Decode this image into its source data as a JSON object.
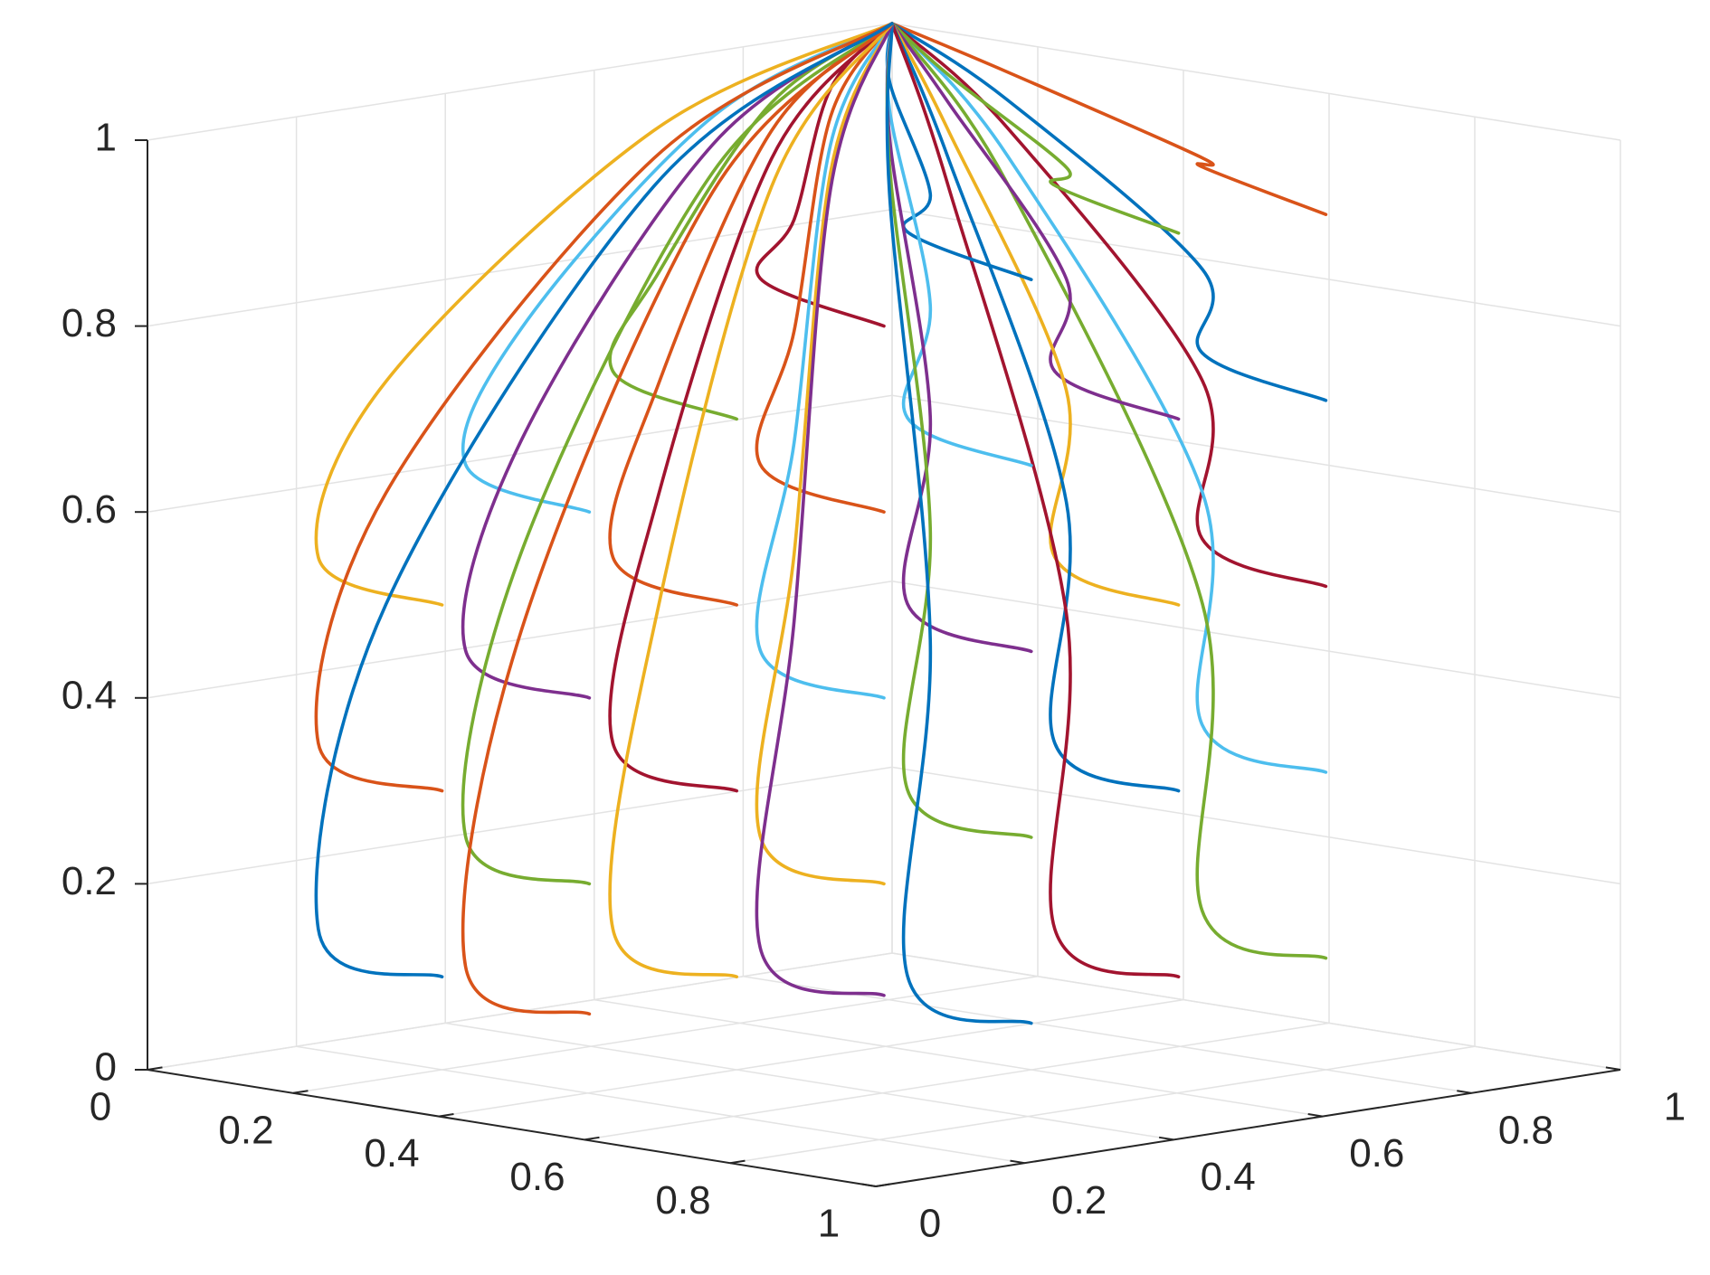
{
  "chart_data": {
    "type": "line3d",
    "xlim": [
      0,
      1
    ],
    "ylim": [
      0,
      1
    ],
    "zlim": [
      0,
      1
    ],
    "xticks": [
      0,
      0.2,
      0.4,
      0.6,
      0.8,
      1
    ],
    "yticks": [
      0,
      0.2,
      0.4,
      0.6,
      0.8,
      1
    ],
    "zticks": [
      0,
      0.2,
      0.4,
      0.6,
      0.8,
      1
    ],
    "grid": true,
    "series": [
      {
        "color": "#D95319",
        "x": [
          0.8,
          0.63,
          0.6,
          0.24,
          0
        ],
        "y": [
          0.8,
          0.8,
          0.83,
          0.92,
          1
        ],
        "z": [
          0.92,
          0.95,
          0.952,
          0.988,
          1
        ]
      },
      {
        "color": "#0072BD",
        "x": [
          0.8,
          0.63,
          0.6,
          0.24,
          0
        ],
        "y": [
          0.8,
          0.8,
          0.83,
          0.92,
          1
        ],
        "z": [
          0.72,
          0.75,
          0.832,
          0.958,
          1
        ]
      },
      {
        "color": "#A2142F",
        "x": [
          0.8,
          0.63,
          0.6,
          0.24,
          0
        ],
        "y": [
          0.8,
          0.8,
          0.83,
          0.92,
          1
        ],
        "z": [
          0.52,
          0.55,
          0.712,
          0.928,
          1
        ]
      },
      {
        "color": "#4DBEEE",
        "x": [
          0.8,
          0.63,
          0.6,
          0.24,
          0
        ],
        "y": [
          0.8,
          0.8,
          0.83,
          0.92,
          1
        ],
        "z": [
          0.32,
          0.35,
          0.592,
          0.898,
          1
        ]
      },
      {
        "color": "#77AC30",
        "x": [
          0.8,
          0.63,
          0.6,
          0.24,
          0
        ],
        "y": [
          0.8,
          0.8,
          0.83,
          0.92,
          1
        ],
        "z": [
          0.12,
          0.15,
          0.472,
          0.868,
          1
        ]
      },
      {
        "color": "#77AC30",
        "x": [
          0.7,
          0.53,
          0.5,
          0.2,
          0
        ],
        "y": [
          0.7,
          0.7,
          0.745,
          0.88,
          1
        ],
        "z": [
          0.9,
          0.93,
          0.94,
          0.985,
          1
        ]
      },
      {
        "color": "#7E2F8E",
        "x": [
          0.7,
          0.53,
          0.5,
          0.2,
          0
        ],
        "y": [
          0.7,
          0.7,
          0.745,
          0.88,
          1
        ],
        "z": [
          0.7,
          0.73,
          0.82,
          0.955,
          1
        ]
      },
      {
        "color": "#EDB120",
        "x": [
          0.7,
          0.53,
          0.5,
          0.2,
          0
        ],
        "y": [
          0.7,
          0.7,
          0.745,
          0.88,
          1
        ],
        "z": [
          0.5,
          0.53,
          0.7,
          0.925,
          1
        ]
      },
      {
        "color": "#0072BD",
        "x": [
          0.7,
          0.53,
          0.5,
          0.2,
          0
        ],
        "y": [
          0.7,
          0.7,
          0.745,
          0.88,
          1
        ],
        "z": [
          0.3,
          0.33,
          0.58,
          0.895,
          1
        ]
      },
      {
        "color": "#A2142F",
        "x": [
          0.7,
          0.53,
          0.5,
          0.2,
          0
        ],
        "y": [
          0.7,
          0.7,
          0.745,
          0.88,
          1
        ],
        "z": [
          0.1,
          0.13,
          0.46,
          0.865,
          1
        ]
      },
      {
        "color": "#0072BD",
        "x": [
          0.6,
          0.43,
          0.4,
          0.16,
          0
        ],
        "y": [
          0.6,
          0.6,
          0.66,
          0.84,
          1
        ],
        "z": [
          0.85,
          0.88,
          0.91,
          0.978,
          1
        ]
      },
      {
        "color": "#4DBEEE",
        "x": [
          0.6,
          0.43,
          0.4,
          0.16,
          0
        ],
        "y": [
          0.6,
          0.6,
          0.66,
          0.84,
          1
        ],
        "z": [
          0.65,
          0.68,
          0.79,
          0.948,
          1
        ]
      },
      {
        "color": "#7E2F8E",
        "x": [
          0.6,
          0.43,
          0.4,
          0.16,
          0
        ],
        "y": [
          0.6,
          0.6,
          0.66,
          0.84,
          1
        ],
        "z": [
          0.45,
          0.48,
          0.67,
          0.918,
          1
        ]
      },
      {
        "color": "#77AC30",
        "x": [
          0.6,
          0.43,
          0.4,
          0.16,
          0
        ],
        "y": [
          0.6,
          0.6,
          0.66,
          0.84,
          1
        ],
        "z": [
          0.25,
          0.28,
          0.55,
          0.888,
          1
        ]
      },
      {
        "color": "#0072BD",
        "x": [
          0.6,
          0.43,
          0.4,
          0.16,
          0
        ],
        "y": [
          0.6,
          0.6,
          0.66,
          0.84,
          1
        ],
        "z": [
          0.05,
          0.08,
          0.43,
          0.858,
          1
        ]
      },
      {
        "color": "#A2142F",
        "x": [
          0.5,
          0.33,
          0.3,
          0.12,
          0
        ],
        "y": [
          0.5,
          0.5,
          0.575,
          0.8,
          1
        ],
        "z": [
          0.8,
          0.83,
          0.88,
          0.97,
          1
        ]
      },
      {
        "color": "#D95319",
        "x": [
          0.5,
          0.33,
          0.3,
          0.12,
          0
        ],
        "y": [
          0.5,
          0.5,
          0.575,
          0.8,
          1
        ],
        "z": [
          0.6,
          0.63,
          0.76,
          0.94,
          1
        ]
      },
      {
        "color": "#4DBEEE",
        "x": [
          0.5,
          0.33,
          0.3,
          0.12,
          0
        ],
        "y": [
          0.5,
          0.5,
          0.575,
          0.8,
          1
        ],
        "z": [
          0.4,
          0.43,
          0.64,
          0.91,
          1
        ]
      },
      {
        "color": "#EDB120",
        "x": [
          0.5,
          0.33,
          0.3,
          0.12,
          0
        ],
        "y": [
          0.5,
          0.5,
          0.575,
          0.8,
          1
        ],
        "z": [
          0.2,
          0.23,
          0.52,
          0.88,
          1
        ]
      },
      {
        "color": "#7E2F8E",
        "x": [
          0.5,
          0.33,
          0.3,
          0.12,
          0
        ],
        "y": [
          0.5,
          0.5,
          0.575,
          0.8,
          1
        ],
        "z": [
          0.08,
          0.11,
          0.448,
          0.862,
          1
        ]
      },
      {
        "color": "#77AC30",
        "x": [
          0.4,
          0.23,
          0.2,
          0.08,
          0
        ],
        "y": [
          0.4,
          0.4,
          0.49,
          0.76,
          1
        ],
        "z": [
          0.7,
          0.73,
          0.82,
          0.955,
          1
        ]
      },
      {
        "color": "#D95319",
        "x": [
          0.4,
          0.23,
          0.2,
          0.08,
          0
        ],
        "y": [
          0.4,
          0.4,
          0.49,
          0.76,
          1
        ],
        "z": [
          0.5,
          0.53,
          0.7,
          0.925,
          1
        ]
      },
      {
        "color": "#A2142F",
        "x": [
          0.4,
          0.23,
          0.2,
          0.08,
          0
        ],
        "y": [
          0.4,
          0.4,
          0.49,
          0.76,
          1
        ],
        "z": [
          0.3,
          0.33,
          0.58,
          0.895,
          1
        ]
      },
      {
        "color": "#EDB120",
        "x": [
          0.4,
          0.23,
          0.2,
          0.08,
          0
        ],
        "y": [
          0.4,
          0.4,
          0.49,
          0.76,
          1
        ],
        "z": [
          0.1,
          0.13,
          0.46,
          0.865,
          1
        ]
      },
      {
        "color": "#4DBEEE",
        "x": [
          0.3,
          0.13,
          0.1,
          0.04,
          0
        ],
        "y": [
          0.3,
          0.3,
          0.405,
          0.72,
          1
        ],
        "z": [
          0.6,
          0.63,
          0.76,
          0.94,
          1
        ]
      },
      {
        "color": "#7E2F8E",
        "x": [
          0.3,
          0.13,
          0.1,
          0.04,
          0
        ],
        "y": [
          0.3,
          0.3,
          0.405,
          0.72,
          1
        ],
        "z": [
          0.4,
          0.43,
          0.64,
          0.91,
          1
        ]
      },
      {
        "color": "#77AC30",
        "x": [
          0.3,
          0.13,
          0.1,
          0.04,
          0
        ],
        "y": [
          0.3,
          0.3,
          0.405,
          0.72,
          1
        ],
        "z": [
          0.2,
          0.23,
          0.52,
          0.88,
          1
        ]
      },
      {
        "color": "#D95319",
        "x": [
          0.3,
          0.13,
          0.1,
          0.04,
          0
        ],
        "y": [
          0.3,
          0.3,
          0.405,
          0.72,
          1
        ],
        "z": [
          0.06,
          0.09,
          0.436,
          0.859,
          1
        ]
      },
      {
        "color": "#EDB120",
        "x": [
          0.2,
          0.03,
          0,
          0,
          0
        ],
        "y": [
          0.2,
          0.2,
          0.32,
          0.68,
          1
        ],
        "z": [
          0.5,
          0.53,
          0.7,
          0.925,
          1
        ]
      },
      {
        "color": "#D95319",
        "x": [
          0.2,
          0.03,
          0,
          0,
          0
        ],
        "y": [
          0.2,
          0.2,
          0.32,
          0.68,
          1
        ],
        "z": [
          0.3,
          0.33,
          0.58,
          0.895,
          1
        ]
      },
      {
        "color": "#0072BD",
        "x": [
          0.2,
          0.03,
          0,
          0,
          0
        ],
        "y": [
          0.2,
          0.2,
          0.32,
          0.68,
          1
        ],
        "z": [
          0.1,
          0.13,
          0.46,
          0.865,
          1
        ]
      }
    ]
  }
}
